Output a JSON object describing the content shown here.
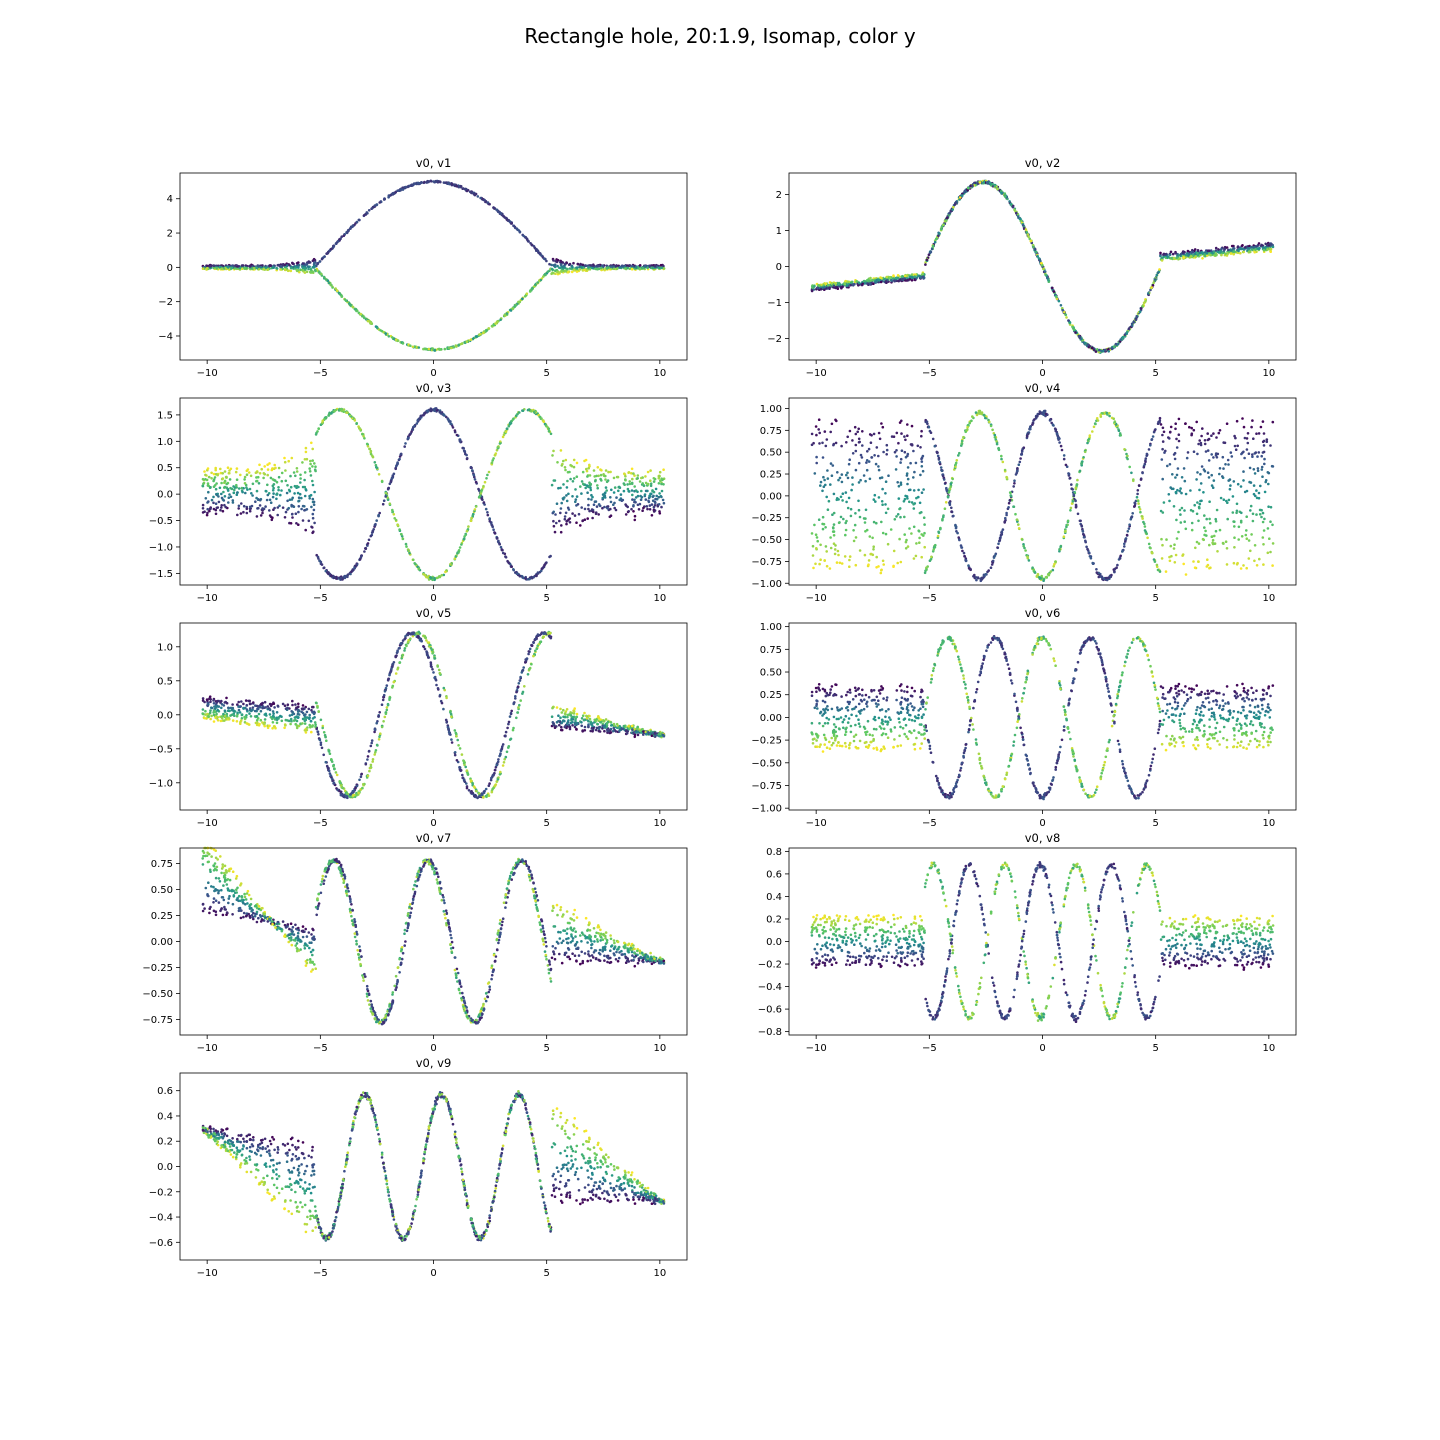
{
  "figure": {
    "title": "Rectangle hole, 20:1.9, Isomap, color y"
  },
  "colormap": [
    "#440154",
    "#3b528b",
    "#21918c",
    "#5ec962",
    "#fde725"
  ],
  "chart_data": [
    {
      "type": "scatter",
      "title": "v0, v1",
      "xlim": [
        -11.2,
        11.2
      ],
      "ylim": [
        -5.4,
        5.5
      ],
      "xticks": [
        -10,
        -5,
        0,
        5,
        10
      ],
      "yticks": [
        -4,
        -2,
        0,
        2,
        4
      ],
      "shape": "v1",
      "series_description": "Points colored by y (viridis). Inner |x|<5.2: two arcs (upper ~+5cos(0.3x), lower ~-4.8cos(0.3x)); outer: flat bands near 0."
    },
    {
      "type": "scatter",
      "title": "v0, v2",
      "xlim": [
        -11.2,
        11.2
      ],
      "ylim": [
        -2.6,
        2.6
      ],
      "xticks": [
        -10,
        -5,
        0,
        5,
        10
      ],
      "yticks": [
        -2,
        -1,
        0,
        1,
        2
      ],
      "shape": "v2"
    },
    {
      "type": "scatter",
      "title": "v0, v3",
      "xlim": [
        -11.2,
        11.2
      ],
      "ylim": [
        -1.72,
        1.82
      ],
      "xticks": [
        -10,
        -5,
        0,
        5,
        10
      ],
      "yticks": [
        -1.5,
        -1.0,
        -0.5,
        0.0,
        0.5,
        1.0,
        1.5
      ],
      "shape": "v3"
    },
    {
      "type": "scatter",
      "title": "v0, v4",
      "xlim": [
        -11.2,
        11.2
      ],
      "ylim": [
        -1.02,
        1.12
      ],
      "xticks": [
        -10,
        -5,
        0,
        5,
        10
      ],
      "yticks": [
        -1.0,
        -0.75,
        -0.5,
        -0.25,
        0.0,
        0.25,
        0.5,
        0.75,
        1.0
      ],
      "shape": "v4"
    },
    {
      "type": "scatter",
      "title": "v0, v5",
      "xlim": [
        -11.2,
        11.2
      ],
      "ylim": [
        -1.4,
        1.35
      ],
      "xticks": [
        -10,
        -5,
        0,
        5,
        10
      ],
      "yticks": [
        -1.0,
        -0.5,
        0.0,
        0.5,
        1.0
      ],
      "shape": "v5"
    },
    {
      "type": "scatter",
      "title": "v0, v6",
      "xlim": [
        -11.2,
        11.2
      ],
      "ylim": [
        -1.02,
        1.04
      ],
      "xticks": [
        -10,
        -5,
        0,
        5,
        10
      ],
      "yticks": [
        -1.0,
        -0.75,
        -0.5,
        -0.25,
        0.0,
        0.25,
        0.5,
        0.75,
        1.0
      ],
      "shape": "v6"
    },
    {
      "type": "scatter",
      "title": "v0, v7",
      "xlim": [
        -11.2,
        11.2
      ],
      "ylim": [
        -0.9,
        0.9
      ],
      "xticks": [
        -10,
        -5,
        0,
        5,
        10
      ],
      "yticks": [
        -0.75,
        -0.5,
        -0.25,
        0.0,
        0.25,
        0.5,
        0.75
      ],
      "shape": "v7"
    },
    {
      "type": "scatter",
      "title": "v0, v8",
      "xlim": [
        -11.2,
        11.2
      ],
      "ylim": [
        -0.83,
        0.83
      ],
      "xticks": [
        -10,
        -5,
        0,
        5,
        10
      ],
      "yticks": [
        -0.8,
        -0.6,
        -0.4,
        -0.2,
        0.0,
        0.2,
        0.4,
        0.6,
        0.8
      ],
      "shape": "v8"
    },
    {
      "type": "scatter",
      "title": "v0, v9",
      "xlim": [
        -11.2,
        11.2
      ],
      "ylim": [
        -0.74,
        0.74
      ],
      "xticks": [
        -10,
        -5,
        0,
        5,
        10
      ],
      "yticks": [
        -0.6,
        -0.4,
        -0.2,
        0.0,
        0.2,
        0.4,
        0.6
      ],
      "shape": "v9"
    }
  ]
}
